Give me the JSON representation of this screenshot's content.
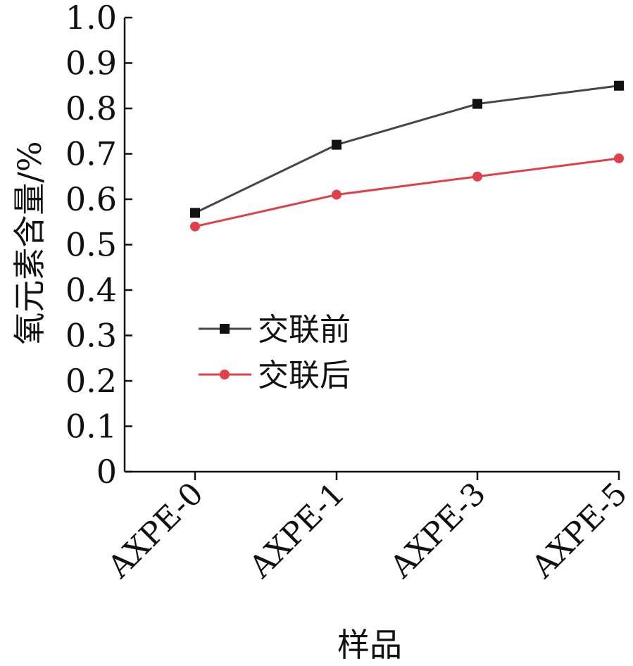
{
  "chart_data": {
    "type": "line",
    "title": "",
    "xlabel": "样品",
    "ylabel": "氧元素含量/%",
    "categories": [
      "AXPE-0",
      "AXPE-1",
      "AXPE-3",
      "AXPE-5"
    ],
    "ylim": [
      0,
      1.0
    ],
    "yticks": [
      "0",
      "0.1",
      "0.2",
      "0.3",
      "0.4",
      "0.5",
      "0.6",
      "0.7",
      "0.8",
      "0.9",
      "1.0"
    ],
    "grid": false,
    "legend_position": "center-left",
    "series": [
      {
        "name": "交联前",
        "values": [
          0.57,
          0.72,
          0.81,
          0.85
        ],
        "color": "#4a4543",
        "marker_color": "#111111",
        "marker": "square"
      },
      {
        "name": "交联后",
        "values": [
          0.54,
          0.61,
          0.65,
          0.69
        ],
        "color": "#e0404a",
        "marker_color": "#e0404a",
        "marker": "circle"
      }
    ]
  }
}
